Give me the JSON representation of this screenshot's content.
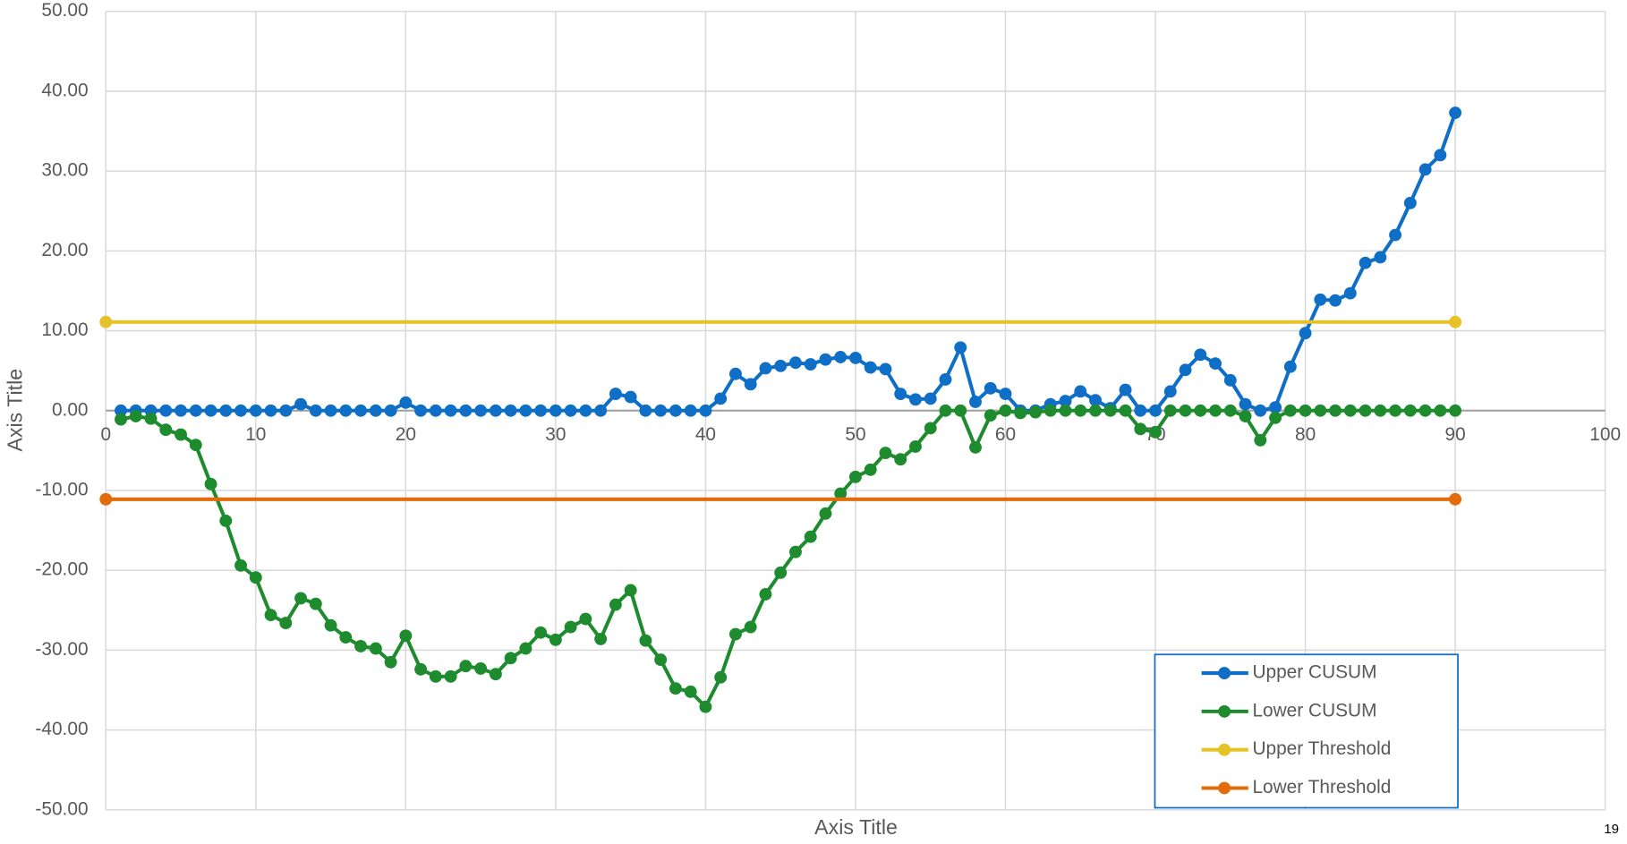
{
  "chart_data": {
    "type": "line",
    "xlabel": "Axis Title",
    "ylabel": "Axis Title",
    "page_number": "19",
    "xlim": [
      0,
      100
    ],
    "xticks": [
      0,
      10,
      20,
      30,
      40,
      50,
      60,
      70,
      80,
      90,
      100
    ],
    "ylim": [
      -50,
      50
    ],
    "yticks": [
      {
        "value": -50,
        "label": "-50.00"
      },
      {
        "value": -40,
        "label": "-40.00"
      },
      {
        "value": -30,
        "label": "-30.00"
      },
      {
        "value": -20,
        "label": "-20.00"
      },
      {
        "value": -10,
        "label": "-10.00"
      },
      {
        "value": 0,
        "label": "0.00"
      },
      {
        "value": 10,
        "label": "10.00"
      },
      {
        "value": 20,
        "label": "20.00"
      },
      {
        "value": 30,
        "label": "30.00"
      },
      {
        "value": 40,
        "label": "40.00"
      },
      {
        "value": 50,
        "label": "50.00"
      }
    ],
    "grid": true,
    "legend": "lower right",
    "series": [
      {
        "name": "Upper CUSUM",
        "color": "#0f6fc6",
        "x": [
          1,
          2,
          3,
          4,
          5,
          6,
          7,
          8,
          9,
          10,
          11,
          12,
          13,
          14,
          15,
          16,
          17,
          18,
          19,
          20,
          21,
          22,
          23,
          24,
          25,
          26,
          27,
          28,
          29,
          30,
          31,
          32,
          33,
          34,
          35,
          36,
          37,
          38,
          39,
          40,
          41,
          42,
          43,
          44,
          45,
          46,
          47,
          48,
          49,
          50,
          51,
          52,
          53,
          54,
          55,
          56,
          57,
          58,
          59,
          60,
          61,
          62,
          63,
          64,
          65,
          66,
          67,
          68,
          69,
          70,
          71,
          72,
          73,
          74,
          75,
          76,
          77,
          78,
          79,
          80,
          81,
          82,
          83,
          84,
          85,
          86,
          87,
          88,
          89,
          90
        ],
        "values": [
          0,
          0,
          0,
          0,
          0,
          0,
          0,
          0,
          0,
          0,
          0,
          0,
          0.8,
          0,
          0,
          0,
          0,
          0,
          0,
          1.0,
          0,
          0,
          0,
          0,
          0,
          0,
          0,
          0,
          0,
          0,
          0,
          0,
          0,
          2.1,
          1.7,
          0,
          0,
          0,
          0,
          0,
          1.5,
          4.6,
          3.3,
          5.3,
          5.6,
          6.0,
          5.8,
          6.4,
          6.7,
          6.6,
          5.4,
          5.2,
          2.1,
          1.4,
          1.5,
          3.9,
          7.9,
          1.1,
          2.8,
          2.1,
          0,
          0,
          0.8,
          1.2,
          2.4,
          1.3,
          0.3,
          2.6,
          0,
          0,
          2.4,
          5.1,
          7.0,
          5.9,
          3.8,
          0.8,
          0,
          0.4,
          5.5,
          9.7,
          13.9,
          13.8,
          14.7,
          18.5,
          19.2,
          22.0,
          26.0,
          30.2,
          32.0,
          37.3
        ]
      },
      {
        "name": "Lower CUSUM",
        "color": "#1e8c2e",
        "x": [
          1,
          2,
          3,
          4,
          5,
          6,
          7,
          8,
          9,
          10,
          11,
          12,
          13,
          14,
          15,
          16,
          17,
          18,
          19,
          20,
          21,
          22,
          23,
          24,
          25,
          26,
          27,
          28,
          29,
          30,
          31,
          32,
          33,
          34,
          35,
          36,
          37,
          38,
          39,
          40,
          41,
          42,
          43,
          44,
          45,
          46,
          47,
          48,
          49,
          50,
          51,
          52,
          53,
          54,
          55,
          56,
          57,
          58,
          59,
          60,
          61,
          62,
          63,
          64,
          65,
          66,
          67,
          68,
          69,
          70,
          71,
          72,
          73,
          74,
          75,
          76,
          77,
          78,
          79,
          80,
          81,
          82,
          83,
          84,
          85,
          86,
          87,
          88,
          89,
          90
        ],
        "values": [
          -1.1,
          -0.7,
          -1.0,
          -2.4,
          -3.0,
          -4.3,
          -9.2,
          -13.8,
          -19.4,
          -20.9,
          -25.6,
          -26.6,
          -23.5,
          -24.2,
          -26.9,
          -28.4,
          -29.5,
          -29.8,
          -31.5,
          -28.2,
          -32.4,
          -33.3,
          -33.3,
          -32.0,
          -32.3,
          -33.0,
          -31.0,
          -29.8,
          -27.8,
          -28.7,
          -27.1,
          -26.1,
          -28.6,
          -24.3,
          -22.5,
          -28.8,
          -31.2,
          -34.8,
          -35.2,
          -37.1,
          -33.4,
          -28.0,
          -27.1,
          -23.0,
          -20.3,
          -17.7,
          -15.8,
          -12.9,
          -10.4,
          -8.3,
          -7.4,
          -5.3,
          -6.1,
          -4.5,
          -2.2,
          0,
          0,
          -4.6,
          -0.6,
          0,
          -0.3,
          -0.2,
          0,
          0,
          0,
          0,
          0,
          0,
          -2.3,
          -2.7,
          0,
          0,
          0,
          0,
          0,
          -0.7,
          -3.7,
          -0.9,
          0,
          0,
          0,
          0,
          0,
          0,
          0,
          0,
          0,
          0,
          0,
          0
        ]
      },
      {
        "name": "Upper Threshold",
        "color": "#e5c228",
        "x": [
          0,
          90
        ],
        "values": [
          11.1,
          11.1
        ]
      },
      {
        "name": "Lower Threshold",
        "color": "#e36c0a",
        "x": [
          0,
          90
        ],
        "values": [
          -11.1,
          -11.1
        ]
      }
    ]
  }
}
